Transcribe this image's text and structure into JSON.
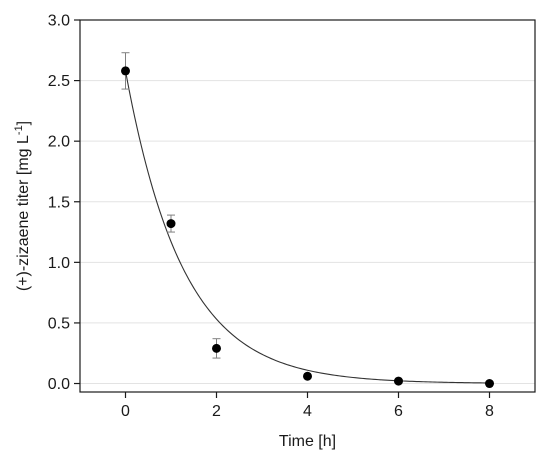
{
  "chart_data": {
    "type": "scatter",
    "title": "",
    "xlabel": "Time [h]",
    "ylabel": {
      "text": "(+)-zizaene titer [mg L",
      "superscript": "-1",
      "close": "]"
    },
    "xlim": [
      -1,
      9
    ],
    "ylim": [
      -0.07,
      3.0
    ],
    "xticks": [
      0,
      2,
      4,
      6,
      8
    ],
    "xtick_labels": [
      "0",
      "2",
      "4",
      "6",
      "8"
    ],
    "yticks": [
      0.0,
      0.5,
      1.0,
      1.5,
      2.0,
      2.5,
      3.0
    ],
    "ytick_labels": [
      "0.0",
      "0.5",
      "1.0",
      "1.5",
      "2.0",
      "2.5",
      "3.0"
    ],
    "grid": "horizontal",
    "legend": "none",
    "series": [
      {
        "x": [
          0,
          1,
          2,
          4,
          6,
          8
        ],
        "y": [
          2.58,
          1.32,
          0.29,
          0.06,
          0.02,
          0.0
        ],
        "error": [
          0.15,
          0.07,
          0.08,
          0.0,
          0.0,
          0.0
        ],
        "color": "#000000"
      }
    ],
    "fit_curve": {
      "model": "exponential decay",
      "y0": 2.58,
      "k": 0.79,
      "x_range": [
        0,
        8
      ],
      "color": "#333333"
    }
  }
}
